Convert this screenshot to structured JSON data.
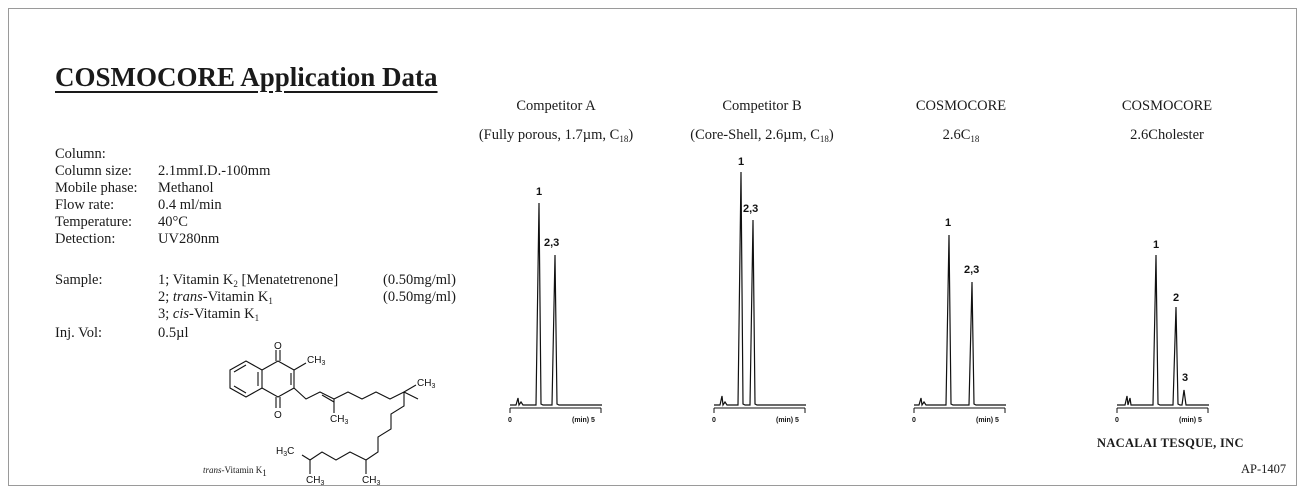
{
  "title": "COSMOCORE Application Data",
  "conditions": {
    "column_label": "Column:",
    "column_value": "",
    "column_size_label": "Column size:",
    "column_size_value": "2.1mmI.D.-100mm",
    "mobile_phase_label": "Mobile phase:",
    "mobile_phase_value": "Methanol",
    "flow_rate_label": "Flow rate:",
    "flow_rate_value": "0.4 ml/min",
    "temperature_label": "Temperature:",
    "temperature_value": "40°C",
    "detection_label": "Detection:",
    "detection_value": "UV280nm",
    "sample_label": "Sample:",
    "samples": [
      {
        "prefix": "1; ",
        "italic": "",
        "name": "Vitamin K",
        "sub": "2",
        "suffix": " [Menatetrenone]",
        "conc": "(0.50mg/ml)"
      },
      {
        "prefix": "2; ",
        "italic": "trans",
        "name": "-Vitamin K",
        "sub": "1",
        "suffix": "",
        "conc": "(0.50mg/ml)"
      },
      {
        "prefix": "3; ",
        "italic": "cis",
        "name": "-Vitamin K",
        "sub": "1",
        "suffix": "",
        "conc": ""
      }
    ],
    "inj_vol_label": "Inj. Vol:",
    "inj_vol_value": "0.5µl"
  },
  "molecule": {
    "caption_italic": "trans",
    "caption_text": "-Vitamin K",
    "caption_sub": "1",
    "labels": {
      "oxygen": "O",
      "methyl": "CH3",
      "h3c": "H3C"
    }
  },
  "chromatograms": [
    {
      "title_line1": "Competitor A",
      "title_line2_pre": "(Fully porous, 1.7µm, C",
      "title_line2_sub": "18",
      "title_line2_post": ")",
      "peak_labels": [
        "1",
        "2,3"
      ],
      "axis_start": "0",
      "axis_end_label": "(min) 5"
    },
    {
      "title_line1": "Competitor B",
      "title_line2_pre": "(Core-Shell, 2.6µm, C",
      "title_line2_sub": "18",
      "title_line2_post": ")",
      "peak_labels": [
        "1",
        "2,3"
      ],
      "axis_start": "0",
      "axis_end_label": "(min) 5"
    },
    {
      "title_line1": "COSMOCORE",
      "title_line2_pre": "2.6C",
      "title_line2_sub": "18",
      "title_line2_post": "",
      "peak_labels": [
        "1",
        "2,3"
      ],
      "axis_start": "0",
      "axis_end_label": "(min) 5"
    },
    {
      "title_line1": "COSMOCORE",
      "title_line2_pre": "2.6Cholester",
      "title_line2_sub": "",
      "title_line2_post": "",
      "peak_labels": [
        "1",
        "2",
        "3"
      ],
      "axis_start": "0",
      "axis_end_label": "(min) 5"
    }
  ],
  "company": "NACALAI TESQUE, INC",
  "doc_number": "AP-1407"
}
